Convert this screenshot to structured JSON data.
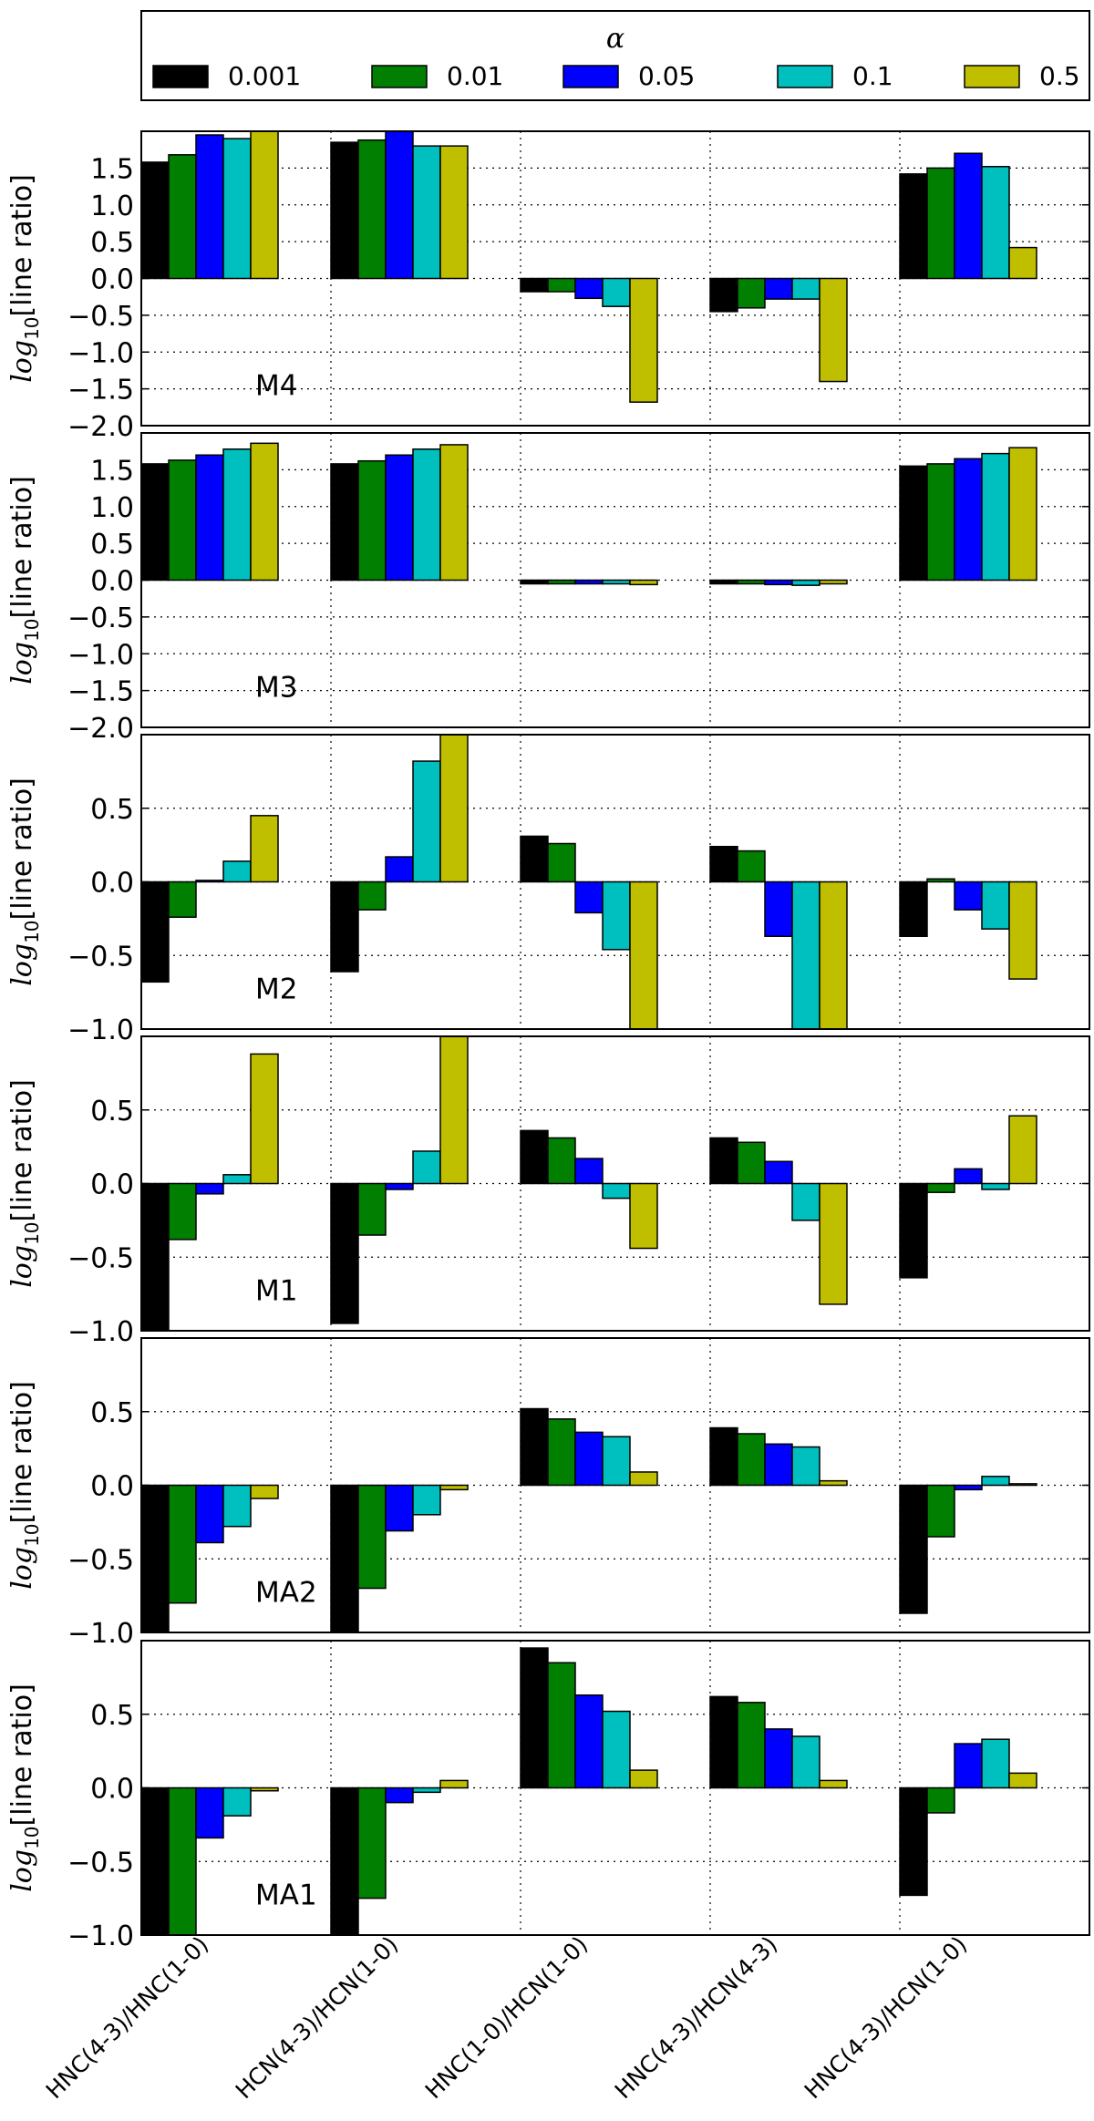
{
  "chart_data": {
    "type": "bar",
    "legend": {
      "title": "α",
      "placement": "top",
      "entries": [
        {
          "label": "0.001",
          "color": "#000000"
        },
        {
          "label": "0.01",
          "color": "#007f00"
        },
        {
          "label": "0.05",
          "color": "#0000ff"
        },
        {
          "label": "0.1",
          "color": "#00bfbf"
        },
        {
          "label": "0.5",
          "color": "#bfbf00"
        }
      ]
    },
    "categories": [
      "HNC(4-3)/HNC(1-0)",
      "HCN(4-3)/HCN(1-0)",
      "HNC(1-0)/HCN(1-0)",
      "HNC(4-3)/HCN(4-3)",
      "HNC(4-3)/HCN(1-0)"
    ],
    "grid": true,
    "ylabel_main": "log",
    "ylabel_sub": "10",
    "ylabel_rest": "[line ratio]",
    "panels": [
      {
        "label": "M4",
        "ylim": [
          -2.0,
          2.0
        ],
        "ticks": [
          -2.0,
          -1.5,
          -1.0,
          -0.5,
          0.0,
          0.5,
          1.0,
          1.5
        ],
        "tick_labels": [
          "−2.0",
          "−1.5",
          "−1.0",
          "−0.5",
          "0.0",
          "0.5",
          "1.0",
          "1.5"
        ],
        "series": [
          [
            1.58,
            1.85,
            -0.18,
            -0.45,
            1.42
          ],
          [
            1.68,
            1.88,
            -0.18,
            -0.4,
            1.5
          ],
          [
            1.95,
            2.0,
            -0.27,
            -0.28,
            1.7
          ],
          [
            1.9,
            1.8,
            -0.38,
            -0.28,
            1.52
          ],
          [
            2.0,
            1.8,
            -1.68,
            -1.4,
            0.42
          ]
        ]
      },
      {
        "label": "M3",
        "ylim": [
          -2.0,
          2.0
        ],
        "ticks": [
          -2.0,
          -1.5,
          -1.0,
          -0.5,
          0.0,
          0.5,
          1.0,
          1.5
        ],
        "tick_labels": [
          "−2.0",
          "−1.5",
          "−1.0",
          "−0.5",
          "0.0",
          "0.5",
          "1.0",
          "1.5"
        ],
        "series": [
          [
            1.58,
            1.58,
            -0.05,
            -0.05,
            1.55
          ],
          [
            1.63,
            1.62,
            -0.05,
            -0.05,
            1.58
          ],
          [
            1.7,
            1.7,
            -0.05,
            -0.06,
            1.65
          ],
          [
            1.78,
            1.78,
            -0.05,
            -0.07,
            1.72
          ],
          [
            1.86,
            1.84,
            -0.06,
            -0.05,
            1.8
          ]
        ]
      },
      {
        "label": "M2",
        "ylim": [
          -1.0,
          1.0
        ],
        "ticks": [
          -1.0,
          -0.5,
          0.0,
          0.5
        ],
        "tick_labels": [
          "−1.0",
          "−0.5",
          "0.0",
          "0.5"
        ],
        "series": [
          [
            -0.68,
            -0.61,
            0.31,
            0.24,
            -0.37
          ],
          [
            -0.24,
            -0.19,
            0.26,
            0.21,
            0.02
          ],
          [
            0.01,
            0.17,
            -0.21,
            -0.37,
            -0.19
          ],
          [
            0.14,
            0.82,
            -0.46,
            -1.0,
            -0.32
          ],
          [
            0.45,
            1.0,
            -1.0,
            -1.0,
            -0.66
          ]
        ]
      },
      {
        "label": "M1",
        "ylim": [
          -1.0,
          1.0
        ],
        "ticks": [
          -1.0,
          -0.5,
          0.0,
          0.5
        ],
        "tick_labels": [
          "−1.0",
          "−0.5",
          "0.0",
          "0.5"
        ],
        "series": [
          [
            -1.0,
            -0.95,
            0.36,
            0.31,
            -0.64
          ],
          [
            -0.38,
            -0.35,
            0.31,
            0.28,
            -0.06
          ],
          [
            -0.07,
            -0.04,
            0.17,
            0.15,
            0.1
          ],
          [
            0.06,
            0.22,
            -0.1,
            -0.25,
            -0.04
          ],
          [
            0.88,
            1.0,
            -0.44,
            -0.82,
            0.46
          ]
        ]
      },
      {
        "label": "MA2",
        "ylim": [
          -1.0,
          1.0
        ],
        "ticks": [
          -1.0,
          -0.5,
          0.0,
          0.5
        ],
        "tick_labels": [
          "−1.0",
          "−0.5",
          "0.0",
          "0.5"
        ],
        "series": [
          [
            -1.0,
            -1.0,
            0.52,
            0.39,
            -0.87
          ],
          [
            -0.8,
            -0.7,
            0.45,
            0.35,
            -0.35
          ],
          [
            -0.39,
            -0.31,
            0.36,
            0.28,
            -0.03
          ],
          [
            -0.28,
            -0.2,
            0.33,
            0.26,
            0.06
          ],
          [
            -0.09,
            -0.03,
            0.09,
            0.03,
            0.01
          ]
        ]
      },
      {
        "label": "MA1",
        "ylim": [
          -1.0,
          1.0
        ],
        "ticks": [
          -1.0,
          -0.5,
          0.0,
          0.5
        ],
        "tick_labels": [
          "−1.0",
          "−0.5",
          "0.0",
          "0.5"
        ],
        "series": [
          [
            -1.0,
            -1.0,
            0.95,
            0.62,
            -0.73
          ],
          [
            -1.0,
            -0.75,
            0.85,
            0.58,
            -0.17
          ],
          [
            -0.34,
            -0.1,
            0.63,
            0.4,
            0.3
          ],
          [
            -0.19,
            -0.03,
            0.52,
            0.35,
            0.33
          ],
          [
            -0.02,
            0.05,
            0.12,
            0.05,
            0.1
          ]
        ]
      }
    ]
  }
}
